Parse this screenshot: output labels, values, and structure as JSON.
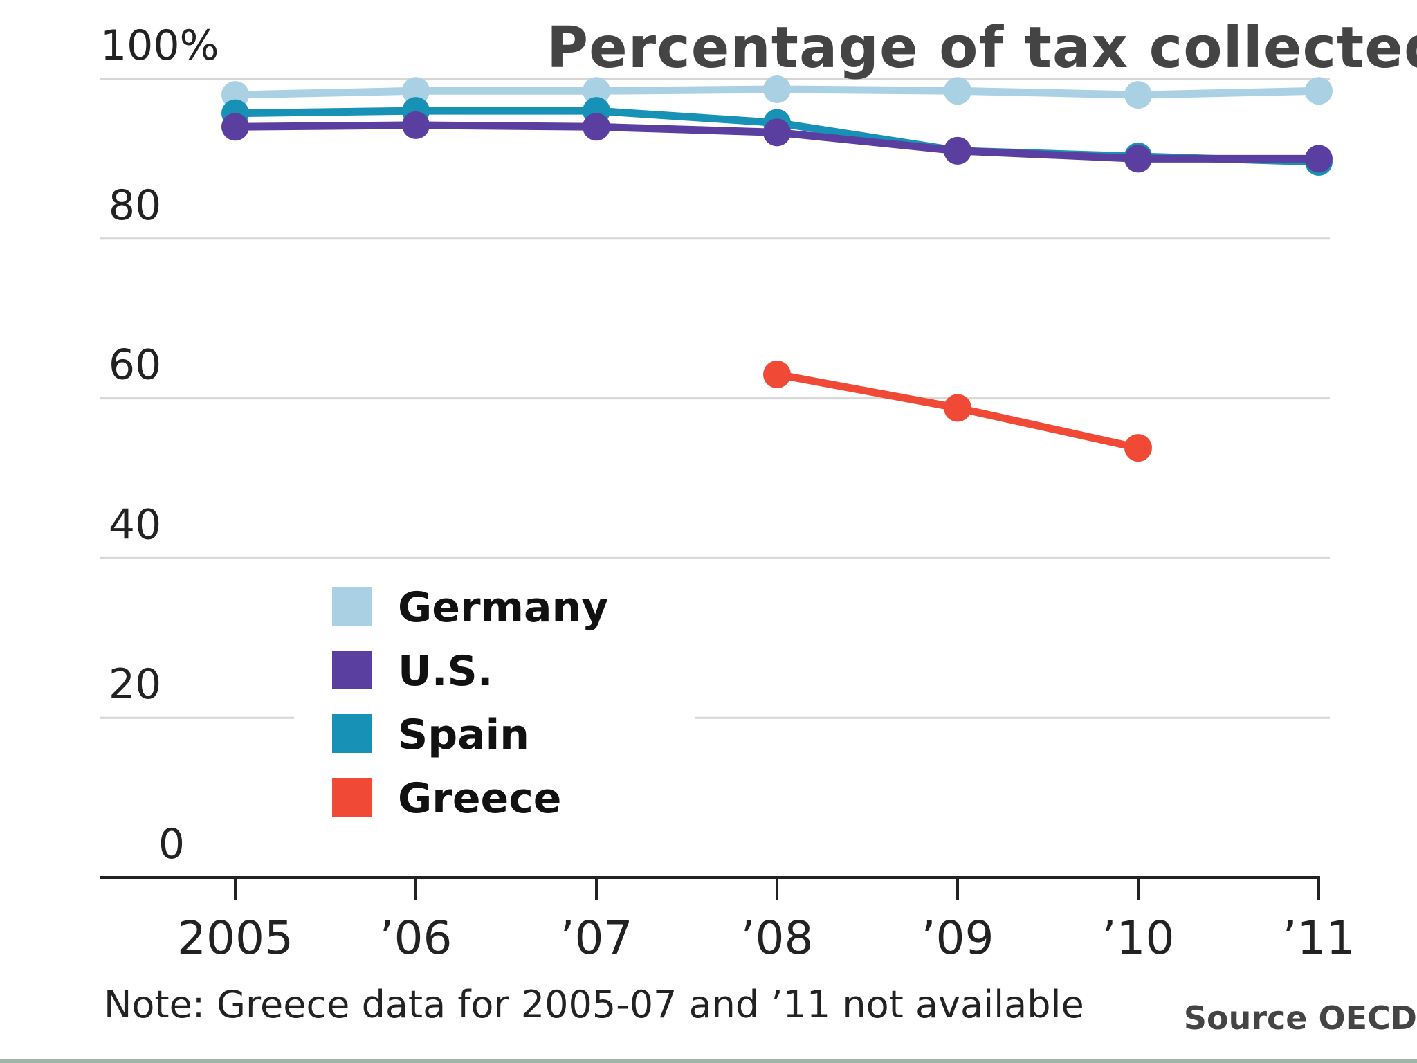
{
  "title": "Percentage of tax collected",
  "note": "Note: Greece data for 2005-07 and ’11 not available",
  "source": "Source OECD",
  "colors": {
    "germany": "#a9d1e3",
    "us": "#5b3fa0",
    "spain": "#1791b5",
    "greece": "#f04a37",
    "grid": "#d6d6d6",
    "axis": "#222222"
  },
  "chart_data": {
    "type": "line",
    "title": "Percentage of tax collected",
    "x": [
      "2005",
      "’06",
      "’07",
      "’08",
      "’09",
      "’10",
      "’11"
    ],
    "y_ticks": [
      "100%",
      "80",
      "60",
      "40",
      "20",
      "0"
    ],
    "y_tick_values": [
      100,
      80,
      60,
      40,
      20,
      0
    ],
    "ylim": [
      0,
      100
    ],
    "grid": true,
    "legend_position": "lower-left",
    "series": [
      {
        "name": "Germany",
        "key": "germany",
        "values": [
          98,
          98.5,
          98.5,
          98.7,
          98.5,
          98,
          98.5
        ]
      },
      {
        "name": "U.S.",
        "key": "us",
        "values": [
          94,
          94.2,
          94,
          93.3,
          91,
          90,
          90
        ]
      },
      {
        "name": "Spain",
        "key": "spain",
        "values": [
          95.7,
          96,
          96,
          94.5,
          91,
          90.3,
          89.6
        ]
      },
      {
        "name": "Greece",
        "key": "greece",
        "values": [
          null,
          null,
          null,
          63,
          58.8,
          53.8,
          null
        ]
      }
    ]
  }
}
